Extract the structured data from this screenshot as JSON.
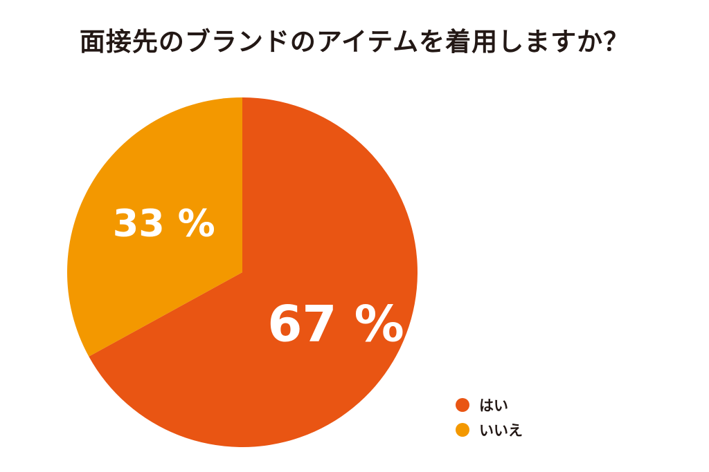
{
  "chart_data": {
    "type": "pie",
    "title": "面接先のブランドのアイテムを着用しますか？",
    "slices": [
      {
        "label": "はい",
        "value": 67,
        "display": "67 %",
        "color": "#E95513"
      },
      {
        "label": "いいえ",
        "value": 33,
        "display": "33 %",
        "color": "#F39800"
      }
    ],
    "start_angle_deg": 0,
    "direction": "clockwise",
    "legend_position": "bottom-right"
  }
}
